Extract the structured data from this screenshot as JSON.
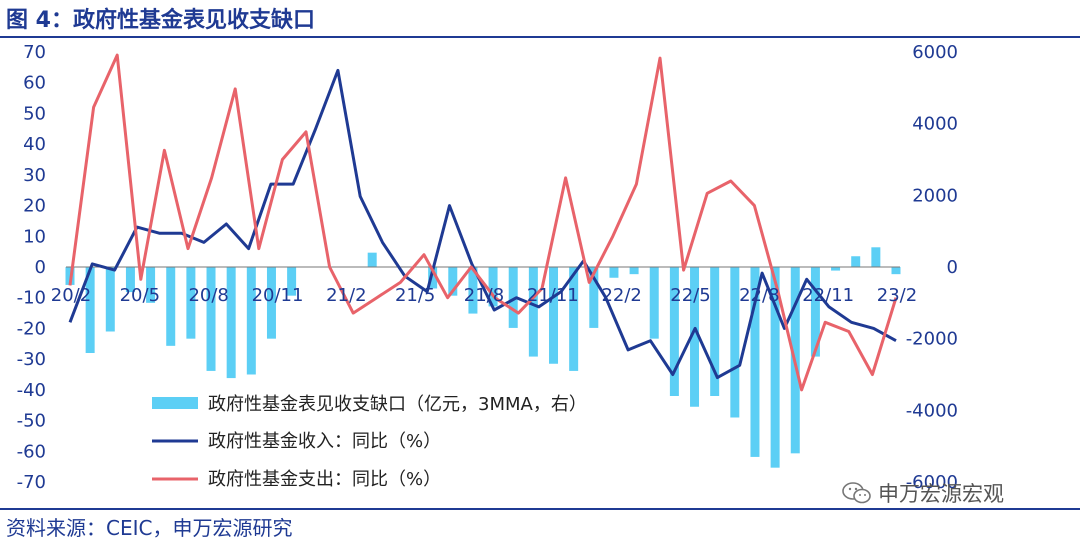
{
  "title": "图 4：政府性基金表见收支缺口",
  "source": "资料来源：CEIC，申万宏源研究",
  "watermark": "申万宏源宏观",
  "chart_data": {
    "type": "bar+line",
    "title": "图 4：政府性基金表见收支缺口",
    "x_tick_labels": [
      "20/2",
      "20/5",
      "20/8",
      "20/11",
      "21/2",
      "21/5",
      "21/8",
      "21/11",
      "22/2",
      "22/5",
      "22/8",
      "22/11",
      "23/2"
    ],
    "left_axis": {
      "ticks": [
        70,
        60,
        50,
        40,
        30,
        20,
        10,
        0,
        -10,
        -20,
        -30,
        -40,
        -50,
        -60,
        -70
      ],
      "ylim": [
        -70,
        70
      ]
    },
    "right_axis": {
      "ticks": [
        6000,
        4000,
        2000,
        0,
        -2000,
        -4000,
        -6000
      ],
      "ylim": [
        -6000,
        6000
      ]
    },
    "grid": false,
    "legend_position": "bottom-center",
    "colors": {
      "bar": "#5ccff5",
      "revenue": "#1f3a93",
      "expenditure": "#e8636a",
      "text": "#1f3a93"
    },
    "series": [
      {
        "name": "政府性基金表见收支缺口（亿元，3MMA，右）",
        "type": "bar",
        "axis": "right",
        "values": [
          -500,
          -2400,
          -1800,
          -700,
          -1000,
          -2200,
          -2000,
          -2900,
          -3100,
          -3000,
          -2000,
          -800,
          0,
          0,
          0,
          400,
          0,
          0,
          -600,
          -800,
          -1300,
          -1100,
          -1700,
          -2500,
          -2700,
          -2900,
          -1700,
          -300,
          -200,
          -2000,
          -3600,
          -3900,
          -3600,
          -4200,
          -5300,
          -5600,
          -5200,
          -2500,
          -100,
          300,
          550,
          -200
        ]
      },
      {
        "name": "政府性基金收入：同比（%）",
        "type": "line",
        "axis": "left",
        "values": [
          -18,
          1,
          -1,
          13,
          11,
          11,
          8,
          14,
          6,
          27,
          27,
          45,
          64,
          23,
          8,
          -3,
          -8,
          20,
          1,
          -14,
          -10,
          -13,
          -8,
          2,
          -10,
          -27,
          -24,
          -35,
          -20,
          -36,
          -32,
          -2,
          -20,
          -4,
          -13,
          -18,
          -20,
          -24
        ]
      },
      {
        "name": "政府性基金支出：同比（%）",
        "type": "line",
        "axis": "left",
        "values": [
          -6,
          52,
          69,
          -4,
          38,
          6,
          29,
          58,
          6,
          35,
          44,
          0,
          -15,
          -10,
          -5,
          4,
          -10,
          0,
          -10,
          -15,
          -7,
          29,
          -5,
          10,
          27,
          68,
          -1,
          24,
          28,
          20,
          -8,
          -40,
          -18,
          -21,
          -35,
          -10
        ]
      }
    ]
  }
}
